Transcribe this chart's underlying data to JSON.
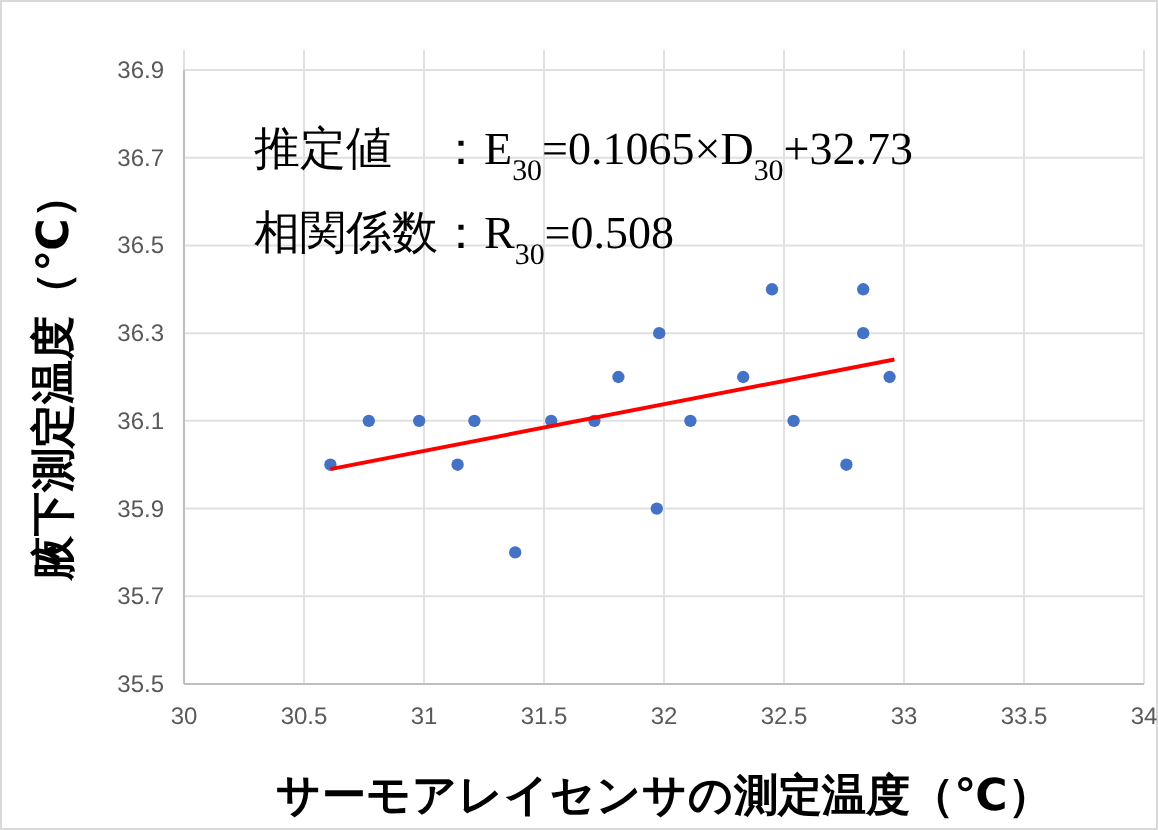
{
  "chart_data": {
    "type": "scatter",
    "xlabel": "サーモアレイセンサの測定温度（℃）",
    "ylabel": "腋下測定温度（℃）",
    "annotations": [
      "推定値　：E$_{30}$=0.1065×D$_{30}$+32.73",
      "相関係数：R$_{30}$=0.508"
    ],
    "xlim": [
      30,
      34
    ],
    "xticks": [
      30,
      30.5,
      31,
      31.5,
      32,
      32.5,
      33,
      33.5,
      34
    ],
    "ylim": [
      35.5,
      36.9
    ],
    "yticks": [
      35.5,
      35.7,
      35.9,
      36.1,
      36.3,
      36.5,
      36.7,
      36.9
    ],
    "grid": true,
    "series": [
      {
        "marker": "circle",
        "color": "#4472c4",
        "x": [
          30.61,
          30.77,
          30.98,
          31.14,
          31.21,
          31.38,
          31.53,
          31.71,
          31.81,
          31.97,
          31.98,
          32.11,
          32.33,
          32.45,
          32.54,
          32.76,
          32.83,
          32.83,
          32.94
        ],
        "values": [
          36.0,
          36.1,
          36.1,
          36.0,
          36.1,
          35.8,
          36.1,
          36.1,
          36.2,
          35.9,
          36.3,
          36.1,
          36.2,
          36.4,
          36.1,
          36.0,
          36.4,
          36.3,
          36.2
        ]
      },
      {
        "type": "line",
        "marker": "none",
        "color": "#ff0000",
        "x": [
          30.61,
          32.96
        ],
        "values": [
          35.99,
          36.24
        ]
      }
    ]
  }
}
